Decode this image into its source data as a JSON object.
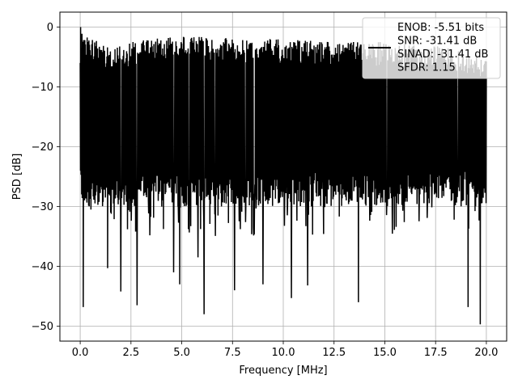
{
  "chart_data": {
    "type": "line",
    "xlabel": "Frequency [MHz]",
    "ylabel": "PSD [dB]",
    "xlim": [
      -1.0,
      21.0
    ],
    "ylim": [
      -52.5,
      2.5
    ],
    "x_ticks": [
      0.0,
      2.5,
      5.0,
      7.5,
      10.0,
      12.5,
      15.0,
      17.5,
      20.0
    ],
    "x_tick_labels": [
      "0.0",
      "2.5",
      "5.0",
      "7.5",
      "10.0",
      "12.5",
      "15.0",
      "17.5",
      "20.0"
    ],
    "y_ticks": [
      0,
      -10,
      -20,
      -30,
      -40,
      -50
    ],
    "y_tick_labels": [
      "0",
      "−10",
      "−20",
      "−30",
      "−40",
      "−50"
    ],
    "grid": true,
    "series_color": "#000000",
    "legend": {
      "placement": "upper right",
      "lines": [
        "ENOB: -5.51 bits",
        "SNR: -31.41 dB",
        "SINAD: -31.41 dB",
        "SFDR: 1.15"
      ]
    },
    "series": [
      {
        "x_range": [
          0.0,
          20.0
        ],
        "upper_envelope": [
          [
            0.0,
            0.0
          ],
          [
            0.5,
            -2
          ],
          [
            1.5,
            -3
          ],
          [
            4.5,
            -1.5
          ],
          [
            5.5,
            -1.5
          ],
          [
            8.0,
            -2
          ],
          [
            10.0,
            -2
          ],
          [
            12.5,
            -2.5
          ],
          [
            15.0,
            -2.5
          ],
          [
            17.5,
            -3
          ],
          [
            20.0,
            -5
          ]
        ],
        "lower_envelope_typical": -27,
        "deep_nulls": [
          [
            0.15,
            -46.8
          ],
          [
            1.35,
            -40.3
          ],
          [
            2.0,
            -44.2
          ],
          [
            2.8,
            -46.5
          ],
          [
            4.6,
            -41
          ],
          [
            4.9,
            -43
          ],
          [
            5.8,
            -38.5
          ],
          [
            6.1,
            -48
          ],
          [
            7.6,
            -44
          ],
          [
            9.0,
            -43
          ],
          [
            10.4,
            -45.3
          ],
          [
            11.2,
            -43.2
          ],
          [
            13.7,
            -46
          ],
          [
            19.1,
            -46.8
          ],
          [
            19.7,
            -49.7
          ]
        ]
      }
    ]
  }
}
